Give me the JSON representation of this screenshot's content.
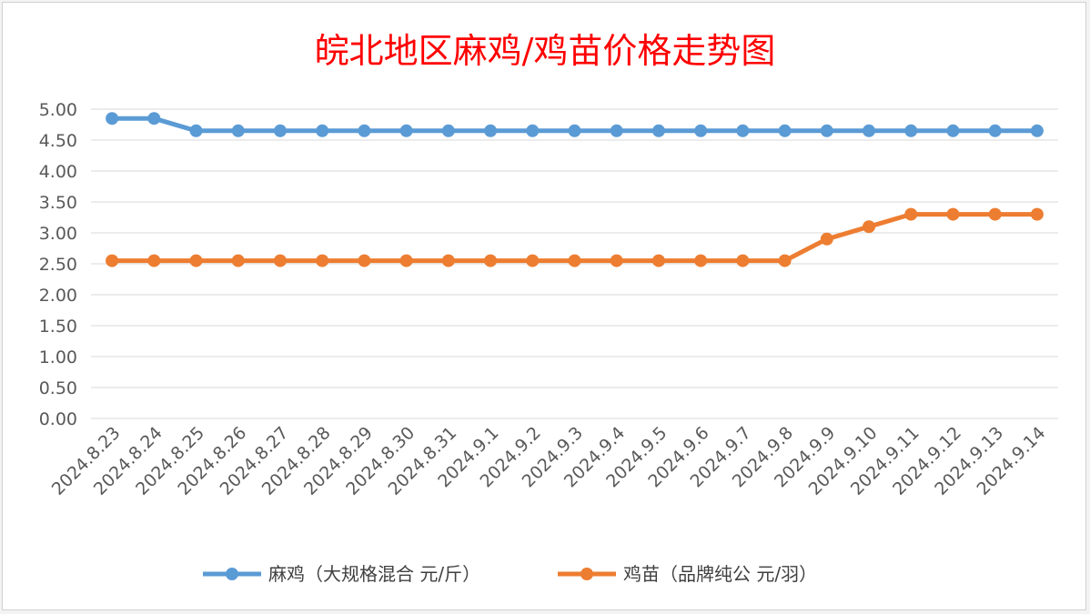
{
  "chart_data": {
    "type": "line",
    "title": "皖北地区麻鸡/鸡苗价格走势图",
    "xlabel": "",
    "ylabel": "",
    "categories": [
      "2024.8.23",
      "2024.8.24",
      "2024.8.25",
      "2024.8.26",
      "2024.8.27",
      "2024.8.28",
      "2024.8.29",
      "2024.8.30",
      "2024.8.31",
      "2024.9.1",
      "2024.9.2",
      "2024.9.3",
      "2024.9.4",
      "2024.9.5",
      "2024.9.6",
      "2024.9.7",
      "2024.9.8",
      "2024.9.9",
      "2024.9.10",
      "2024.9.11",
      "2024.9.12",
      "2024.9.13",
      "2024.9.14"
    ],
    "ylim": [
      0,
      5
    ],
    "yticks": [
      "0.00",
      "0.50",
      "1.00",
      "1.50",
      "2.00",
      "2.50",
      "3.00",
      "3.50",
      "4.00",
      "4.50",
      "5.00"
    ],
    "grid": true,
    "legend_position": "bottom",
    "series": [
      {
        "name": "麻鸡（大规格混合 元/斤）",
        "color": "#5b9bd5",
        "values": [
          4.85,
          4.85,
          4.65,
          4.65,
          4.65,
          4.65,
          4.65,
          4.65,
          4.65,
          4.65,
          4.65,
          4.65,
          4.65,
          4.65,
          4.65,
          4.65,
          4.65,
          4.65,
          4.65,
          4.65,
          4.65,
          4.65,
          4.65
        ]
      },
      {
        "name": "鸡苗（品牌纯公 元/羽）",
        "color": "#ed7d31",
        "values": [
          2.55,
          2.55,
          2.55,
          2.55,
          2.55,
          2.55,
          2.55,
          2.55,
          2.55,
          2.55,
          2.55,
          2.55,
          2.55,
          2.55,
          2.55,
          2.55,
          2.55,
          2.9,
          3.1,
          3.3,
          3.3,
          3.3,
          3.3
        ]
      }
    ]
  }
}
